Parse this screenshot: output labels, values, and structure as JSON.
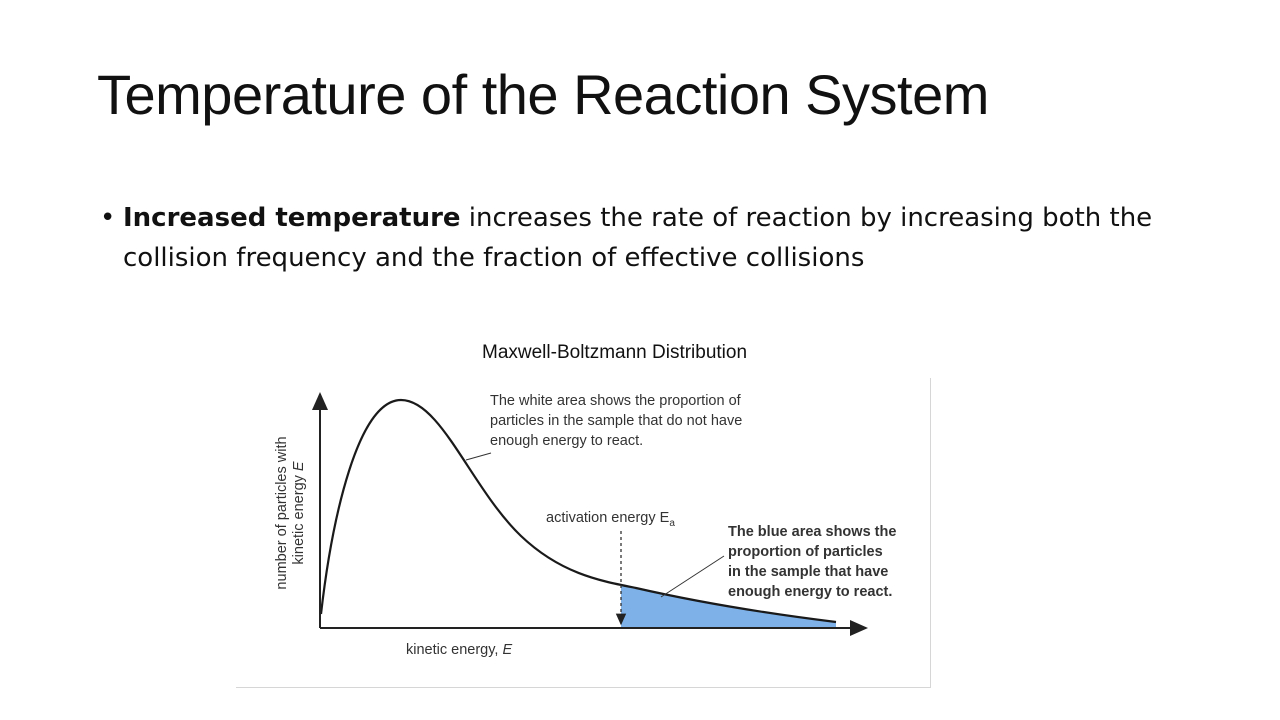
{
  "title": "Temperature of the Reaction System",
  "bullets": [
    {
      "bold": "Increased temperature",
      "text": " increases the rate of reaction by increasing both the collision frequency and the fraction of effective collisions"
    }
  ],
  "figure": {
    "caption": "Maxwell-Boltzmann Distribution",
    "y_axis_label_line1": "number of particles with",
    "y_axis_label_line2_prefix": "kinetic energy ",
    "y_axis_label_line2_var": "E",
    "x_axis_label_prefix": "kinetic energy, ",
    "x_axis_label_var": "E",
    "activation_label": "activation energy E",
    "activation_subscript": "a",
    "white_area_note": [
      "The white area shows the proportion of",
      "particles in the sample that do not have",
      "enough energy to react."
    ],
    "blue_area_note": [
      "The blue area shows the",
      "proportion of particles",
      "in the sample that have",
      "enough energy to react."
    ],
    "colors": {
      "curve": "#1a1a1a",
      "shaded_area": "#6fa8e6",
      "axes": "#222222"
    }
  }
}
